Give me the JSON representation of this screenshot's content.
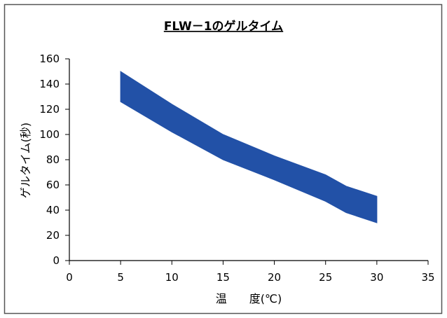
{
  "chart_data": {
    "type": "area",
    "title": "FLW－1のゲルタイム",
    "xlabel": "温　　度(℃)",
    "ylabel": "ゲルタイム(秒)",
    "xlim": [
      0,
      35
    ],
    "ylim": [
      0,
      160
    ],
    "x_ticks": [
      "0",
      "5",
      "10",
      "15",
      "20",
      "25",
      "30",
      "35"
    ],
    "y_ticks": [
      "0",
      "20",
      "40",
      "60",
      "80",
      "100",
      "120",
      "140",
      "160"
    ],
    "grid": false,
    "legend": "none",
    "band": {
      "color": "#2251A7",
      "upper": [
        [
          5,
          150
        ],
        [
          10,
          124
        ],
        [
          15,
          100
        ],
        [
          20,
          83
        ],
        [
          25,
          68
        ],
        [
          27,
          59
        ],
        [
          30,
          51
        ]
      ],
      "lower": [
        [
          5,
          126
        ],
        [
          10,
          102
        ],
        [
          15,
          80
        ],
        [
          20,
          64
        ],
        [
          25,
          47
        ],
        [
          27,
          38
        ],
        [
          30,
          30
        ]
      ]
    }
  }
}
